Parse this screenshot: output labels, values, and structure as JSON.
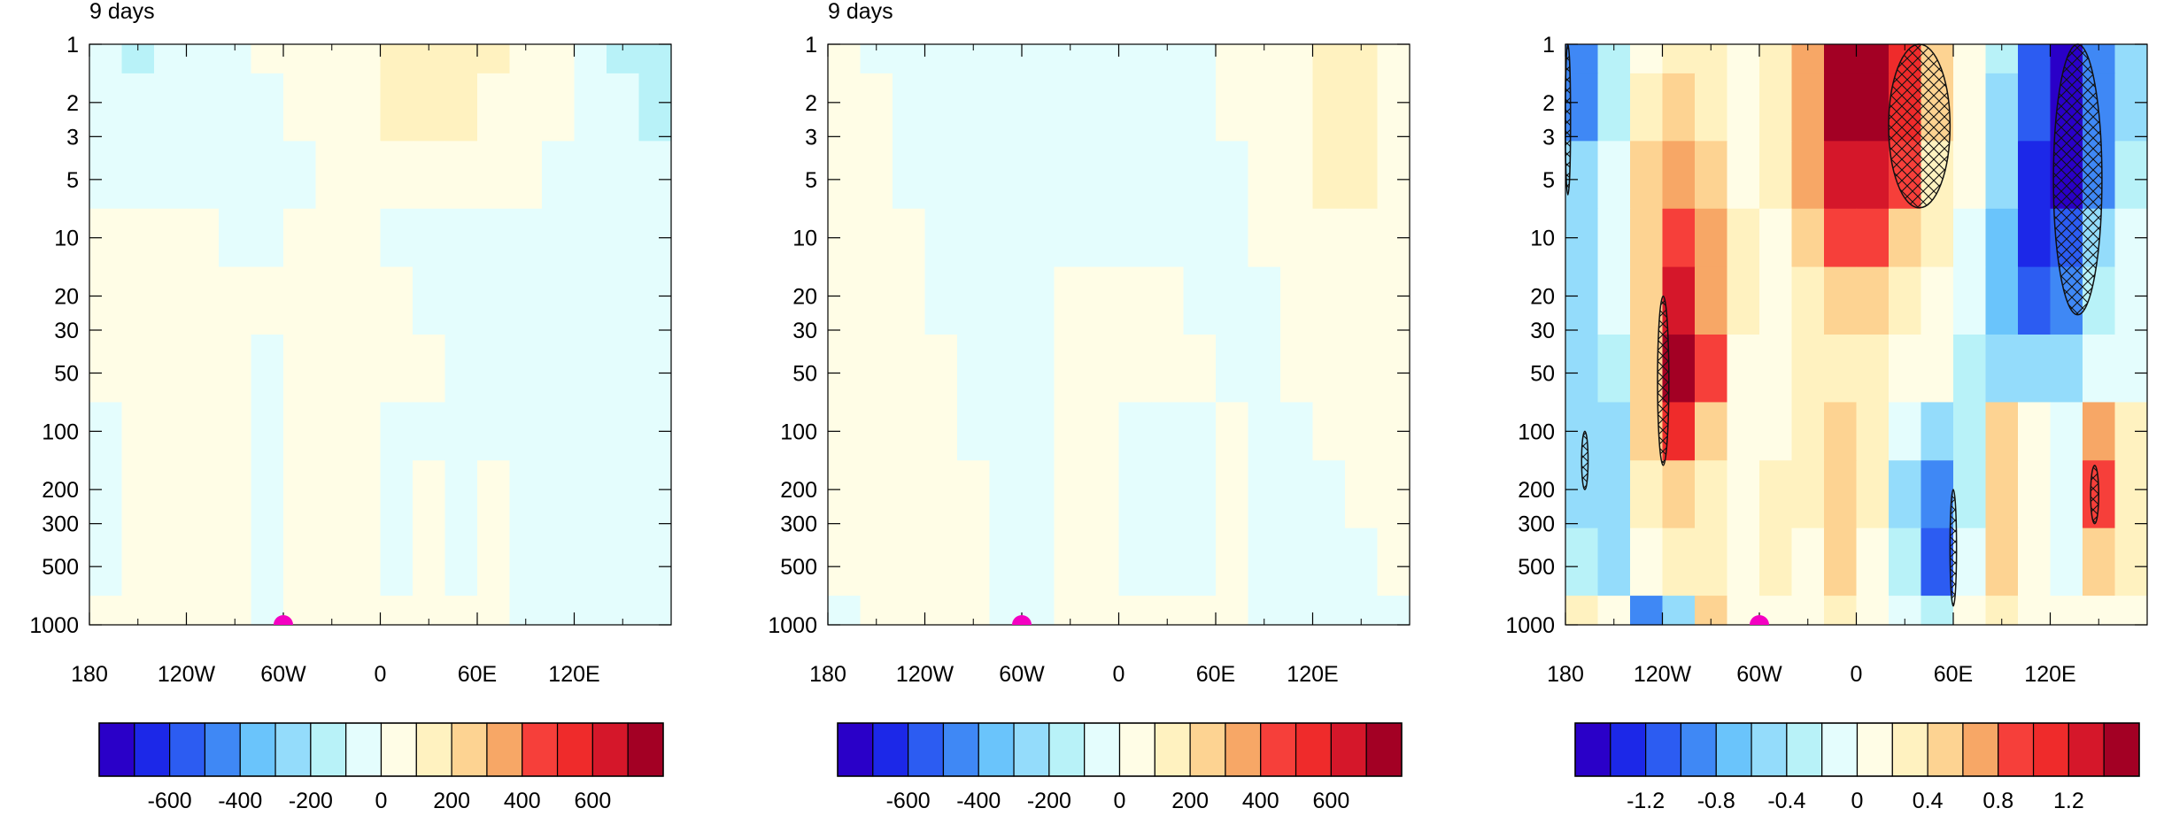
{
  "colors": {
    "palette": [
      "#2a00c8",
      "#1c28e8",
      "#2c5cf2",
      "#3f88f5",
      "#6ac4fb",
      "#94dcfb",
      "#b8f2f8",
      "#e4fdfd",
      "#fffde6",
      "#fff2c0",
      "#fdd392",
      "#f7a766",
      "#f63f3a",
      "#ef2b2b",
      "#d5172a",
      "#a30024"
    ],
    "cyclone_marker": "#f400c2",
    "contour": "#333333",
    "hatch": "#111111"
  },
  "chart_data": [
    {
      "type": "heatmap",
      "title": "9 days",
      "x_ticks": [
        "180",
        "120W",
        "60W",
        "0",
        "60E",
        "120E"
      ],
      "x_range": [
        -180,
        180
      ],
      "y_ticks": [
        "1",
        "2",
        "3",
        "5",
        "10",
        "20",
        "30",
        "50",
        "100",
        "200",
        "300",
        "500",
        "1000"
      ],
      "y_range": [
        1,
        1000
      ],
      "y_scale": "log",
      "y_inverted": true,
      "marker_lon": -60,
      "colorbar_labels": [
        "-600",
        "-400",
        "-200",
        "0",
        "200",
        "400",
        "600"
      ],
      "colorbar_levels": 16,
      "field": [
        {
          "pressure": 1,
          "values": [
            -100,
            -150,
            -100,
            -50,
            -20,
            10,
            30,
            60,
            80,
            120,
            150,
            150,
            110,
            60,
            20,
            -20,
            -120,
            -200
          ]
        },
        {
          "pressure": 2,
          "values": [
            -30,
            -50,
            -60,
            -50,
            -30,
            -10,
            10,
            40,
            70,
            100,
            150,
            130,
            90,
            50,
            10,
            -10,
            -80,
            -150
          ]
        },
        {
          "pressure": 5,
          "values": [
            -20,
            -40,
            -50,
            -50,
            -40,
            -30,
            -10,
            10,
            30,
            50,
            70,
            60,
            40,
            10,
            -10,
            -30,
            -60,
            -80
          ]
        },
        {
          "pressure": 10,
          "values": [
            20,
            30,
            40,
            20,
            -10,
            -20,
            10,
            30,
            20,
            -10,
            -30,
            -30,
            -20,
            -20,
            -20,
            -30,
            -40,
            -40
          ]
        },
        {
          "pressure": 20,
          "values": [
            30,
            40,
            50,
            40,
            20,
            0,
            30,
            40,
            20,
            0,
            -30,
            -40,
            -40,
            -30,
            -30,
            -40,
            -40,
            -40
          ]
        },
        {
          "pressure": 50,
          "values": [
            20,
            30,
            40,
            30,
            10,
            -10,
            20,
            50,
            30,
            20,
            10,
            -30,
            -40,
            -40,
            -40,
            -40,
            -40,
            -40
          ]
        },
        {
          "pressure": 100,
          "values": [
            -20,
            20,
            30,
            30,
            10,
            -20,
            20,
            40,
            20,
            -20,
            -10,
            -30,
            -40,
            -40,
            -40,
            -40,
            -40,
            -40
          ]
        },
        {
          "pressure": 200,
          "values": [
            -30,
            20,
            30,
            30,
            10,
            -30,
            10,
            30,
            20,
            -20,
            10,
            -10,
            10,
            -30,
            -40,
            -40,
            -40,
            -40
          ]
        },
        {
          "pressure": 500,
          "values": [
            -30,
            20,
            30,
            40,
            10,
            -30,
            10,
            30,
            20,
            -20,
            20,
            -20,
            20,
            -30,
            -40,
            -40,
            -40,
            -40
          ]
        },
        {
          "pressure": 1000,
          "values": [
            20,
            20,
            20,
            30,
            10,
            -30,
            10,
            20,
            20,
            10,
            10,
            10,
            10,
            -30,
            -40,
            -40,
            -40,
            -40
          ]
        }
      ]
    },
    {
      "type": "heatmap",
      "title": "9 days",
      "x_ticks": [
        "180",
        "120W",
        "60W",
        "0",
        "60E",
        "120E"
      ],
      "x_range": [
        -180,
        180
      ],
      "y_ticks": [
        "1",
        "2",
        "3",
        "5",
        "10",
        "20",
        "30",
        "50",
        "100",
        "200",
        "300",
        "500",
        "1000"
      ],
      "y_range": [
        1,
        1000
      ],
      "y_scale": "log",
      "y_inverted": true,
      "marker_lon": -60,
      "colorbar_labels": [
        "-600",
        "-400",
        "-200",
        "0",
        "200",
        "400",
        "600"
      ],
      "colorbar_levels": 16,
      "field": [
        {
          "pressure": 1,
          "values": [
            20,
            -20,
            -30,
            -30,
            -30,
            -30,
            -30,
            -30,
            -30,
            -30,
            -30,
            -20,
            10,
            30,
            80,
            150,
            130,
            80
          ]
        },
        {
          "pressure": 2,
          "values": [
            20,
            10,
            -20,
            -30,
            -30,
            -30,
            -30,
            -30,
            -30,
            -30,
            -30,
            -20,
            10,
            30,
            80,
            160,
            140,
            80
          ]
        },
        {
          "pressure": 5,
          "values": [
            30,
            20,
            -10,
            -30,
            -30,
            -30,
            -30,
            -30,
            -30,
            -30,
            -30,
            -30,
            -10,
            20,
            60,
            150,
            120,
            70
          ]
        },
        {
          "pressure": 10,
          "values": [
            30,
            30,
            10,
            -20,
            -30,
            -30,
            -30,
            -30,
            -30,
            -30,
            -30,
            -30,
            -30,
            10,
            40,
            50,
            40,
            30
          ]
        },
        {
          "pressure": 20,
          "values": [
            30,
            30,
            20,
            -10,
            -30,
            -30,
            -30,
            10,
            20,
            20,
            10,
            -20,
            -30,
            -10,
            20,
            30,
            30,
            20
          ]
        },
        {
          "pressure": 50,
          "values": [
            30,
            30,
            20,
            10,
            -20,
            -30,
            -20,
            20,
            30,
            30,
            20,
            10,
            -10,
            -20,
            10,
            20,
            20,
            20
          ]
        },
        {
          "pressure": 100,
          "values": [
            30,
            30,
            20,
            10,
            -20,
            -30,
            -20,
            20,
            20,
            -10,
            -30,
            -10,
            20,
            -20,
            -20,
            20,
            20,
            20
          ]
        },
        {
          "pressure": 200,
          "values": [
            30,
            30,
            20,
            20,
            20,
            -10,
            -20,
            20,
            20,
            -10,
            -40,
            -20,
            20,
            -20,
            -30,
            -20,
            10,
            20
          ]
        },
        {
          "pressure": 500,
          "values": [
            30,
            10,
            20,
            20,
            20,
            -10,
            -20,
            20,
            20,
            -20,
            -40,
            -20,
            20,
            -30,
            -30,
            -30,
            -10,
            10
          ]
        },
        {
          "pressure": 1000,
          "values": [
            -10,
            20,
            20,
            20,
            10,
            -20,
            -30,
            20,
            20,
            20,
            10,
            10,
            20,
            -30,
            -30,
            -30,
            -20,
            -10
          ]
        }
      ]
    },
    {
      "type": "heatmap",
      "title": "",
      "x_ticks": [
        "180",
        "120W",
        "60W",
        "0",
        "60E",
        "120E"
      ],
      "x_range": [
        -180,
        180
      ],
      "y_ticks": [
        "1",
        "2",
        "3",
        "5",
        "10",
        "20",
        "30",
        "50",
        "100",
        "200",
        "300",
        "500",
        "1000"
      ],
      "y_range": [
        1,
        1000
      ],
      "y_scale": "log",
      "y_inverted": true,
      "marker_lon": -60,
      "colorbar_labels": [
        "-1.2",
        "-0.8",
        "-0.4",
        "0",
        "0.4",
        "0.8",
        "1.2"
      ],
      "colorbar_levels": 16,
      "field": [
        {
          "pressure": 1,
          "values": [
            -0.8,
            -0.3,
            0.1,
            0.3,
            0.2,
            0.1,
            0.2,
            0.6,
            1.4,
            1.5,
            1.1,
            0.5,
            0.1,
            -0.3,
            -1.0,
            -1.6,
            -0.8,
            -0.4
          ]
        },
        {
          "pressure": 2,
          "values": [
            -0.8,
            -0.3,
            0.2,
            0.4,
            0.3,
            0.1,
            0.2,
            0.7,
            1.4,
            1.5,
            1.0,
            0.4,
            0.1,
            -0.4,
            -1.1,
            -1.6,
            -0.9,
            -0.4
          ]
        },
        {
          "pressure": 5,
          "values": [
            -0.6,
            -0.2,
            0.4,
            0.6,
            0.4,
            0.1,
            0.2,
            0.6,
            1.2,
            1.3,
            0.8,
            0.3,
            0.0,
            -0.5,
            -1.2,
            -1.4,
            -0.8,
            -0.3
          ]
        },
        {
          "pressure": 10,
          "values": [
            -0.4,
            -0.1,
            0.5,
            0.9,
            0.6,
            0.2,
            0.1,
            0.4,
            0.8,
            0.8,
            0.5,
            0.2,
            -0.1,
            -0.7,
            -1.2,
            -1.1,
            -0.5,
            -0.2
          ]
        },
        {
          "pressure": 20,
          "values": [
            -0.4,
            -0.2,
            0.5,
            1.2,
            0.7,
            0.2,
            0.1,
            0.3,
            0.5,
            0.5,
            0.3,
            0.1,
            -0.2,
            -0.7,
            -1.0,
            -0.8,
            -0.3,
            -0.1
          ]
        },
        {
          "pressure": 50,
          "values": [
            -0.5,
            -0.3,
            0.5,
            1.4,
            0.8,
            0.1,
            0.1,
            0.2,
            0.3,
            0.2,
            0.1,
            0.0,
            -0.3,
            -0.5,
            -0.6,
            -0.4,
            -0.2,
            -0.1
          ]
        },
        {
          "pressure": 100,
          "values": [
            -0.5,
            -0.5,
            0.4,
            1.0,
            0.5,
            0.1,
            0.1,
            0.2,
            0.4,
            0.3,
            -0.2,
            -0.6,
            -0.3,
            0.4,
            0.1,
            -0.2,
            0.6,
            0.2
          ]
        },
        {
          "pressure": 200,
          "values": [
            -0.4,
            -0.6,
            0.2,
            0.4,
            0.3,
            0.1,
            0.2,
            0.2,
            0.5,
            0.2,
            -0.4,
            -0.9,
            -0.3,
            0.5,
            0.1,
            -0.2,
            0.9,
            0.3
          ]
        },
        {
          "pressure": 500,
          "values": [
            -0.3,
            -0.4,
            0.1,
            0.3,
            0.2,
            0.0,
            0.3,
            0.1,
            0.4,
            0.1,
            -0.3,
            -1.1,
            -0.2,
            0.4,
            0.1,
            -0.1,
            0.5,
            0.2
          ]
        },
        {
          "pressure": 1000,
          "values": [
            0.2,
            0.1,
            -0.8,
            -0.6,
            0.4,
            0.1,
            0.0,
            0.1,
            0.2,
            0.1,
            -0.1,
            -0.3,
            0.1,
            0.2,
            0.1,
            0.0,
            0.1,
            0.0
          ]
        }
      ],
      "hatched_regions": [
        {
          "lon": [
            -123,
            -116
          ],
          "pressure": [
            20,
            150
          ]
        },
        {
          "lon": [
            20,
            58
          ],
          "pressure": [
            1,
            7
          ]
        },
        {
          "lon": [
            122,
            152
          ],
          "pressure": [
            1,
            25
          ]
        },
        {
          "lon": [
            -180,
            -177
          ],
          "pressure": [
            1,
            6
          ]
        },
        {
          "lon": [
            58,
            62
          ],
          "pressure": [
            200,
            800
          ]
        },
        {
          "lon": [
            145,
            150
          ],
          "pressure": [
            150,
            300
          ]
        },
        {
          "lon": [
            -170,
            -166
          ],
          "pressure": [
            100,
            200
          ]
        }
      ]
    }
  ]
}
